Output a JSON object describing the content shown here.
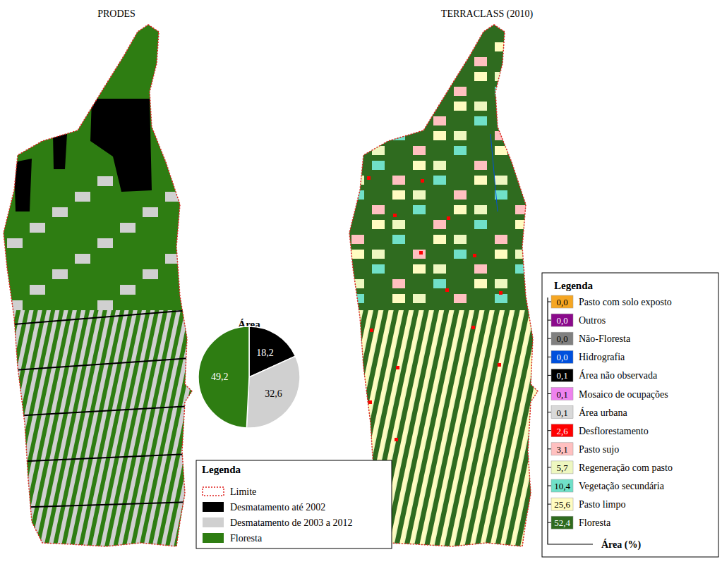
{
  "maps": [
    {
      "title": "PRODES",
      "legend": {
        "title": "Legenda",
        "items": [
          {
            "label": "Limite",
            "color": "#e0201e",
            "line_style": "dotted"
          },
          {
            "label": "Desmatamento até 2002",
            "color": "#000000"
          },
          {
            "label": "Desmatamento de 2003 a 2012",
            "color": "#d0d0d0"
          },
          {
            "label": "Floresta",
            "color": "#2e7d12"
          }
        ]
      }
    },
    {
      "title": "TERRACLASS (2010)",
      "legend": {
        "title": "Legenda",
        "axis_label": "Área (%)",
        "items": [
          {
            "label": "Pasto com solo exposto",
            "color": "#f5a623",
            "value": 0.0,
            "value_label": "0,0"
          },
          {
            "label": "Outros",
            "color": "#8b0a8b",
            "value": 0.0,
            "value_label": "0,0"
          },
          {
            "label": "Não-Floresta",
            "color": "#808080",
            "value": 0.0,
            "value_label": "0,0"
          },
          {
            "label": "Hidrografia",
            "color": "#0050dc",
            "value": 0.0,
            "value_label": "0,0"
          },
          {
            "label": "Área não observada",
            "color": "#000000",
            "value": 0.1,
            "value_label": "0,1"
          },
          {
            "label": "Mosaico de ocupações",
            "color": "#ee82ee",
            "value": 0.1,
            "value_label": "0,1"
          },
          {
            "label": "Área urbana",
            "color": "#d9d9d9",
            "value": 0.1,
            "value_label": "0,1"
          },
          {
            "label": "Desflorestamento",
            "color": "#ff0000",
            "value": 2.6,
            "value_label": "2,6"
          },
          {
            "label": "Pasto sujo",
            "color": "#ffc0c0",
            "value": 3.1,
            "value_label": "3,1"
          },
          {
            "label": "Regeneração com pasto",
            "color": "#eef7c0",
            "value": 5.7,
            "value_label": "5,7"
          },
          {
            "label": "Vegetação secundária",
            "color": "#70e0c8",
            "value": 10.4,
            "value_label": "10,4"
          },
          {
            "label": "Pasto limpo",
            "color": "#fffcc0",
            "value": 25.6,
            "value_label": "25,6"
          },
          {
            "label": "Floresta",
            "color": "#2f6b1f",
            "value": 52.4,
            "value_label": "52,4"
          }
        ]
      }
    }
  ],
  "chart_data": {
    "type": "pie",
    "title": "Área",
    "values": [
      18.2,
      32.6,
      49.2
    ],
    "value_labels": [
      "18,2",
      "32,6",
      "49,2"
    ],
    "colors": [
      "#000000",
      "#d0d0d0",
      "#2e7d12"
    ],
    "data_labels": true
  }
}
